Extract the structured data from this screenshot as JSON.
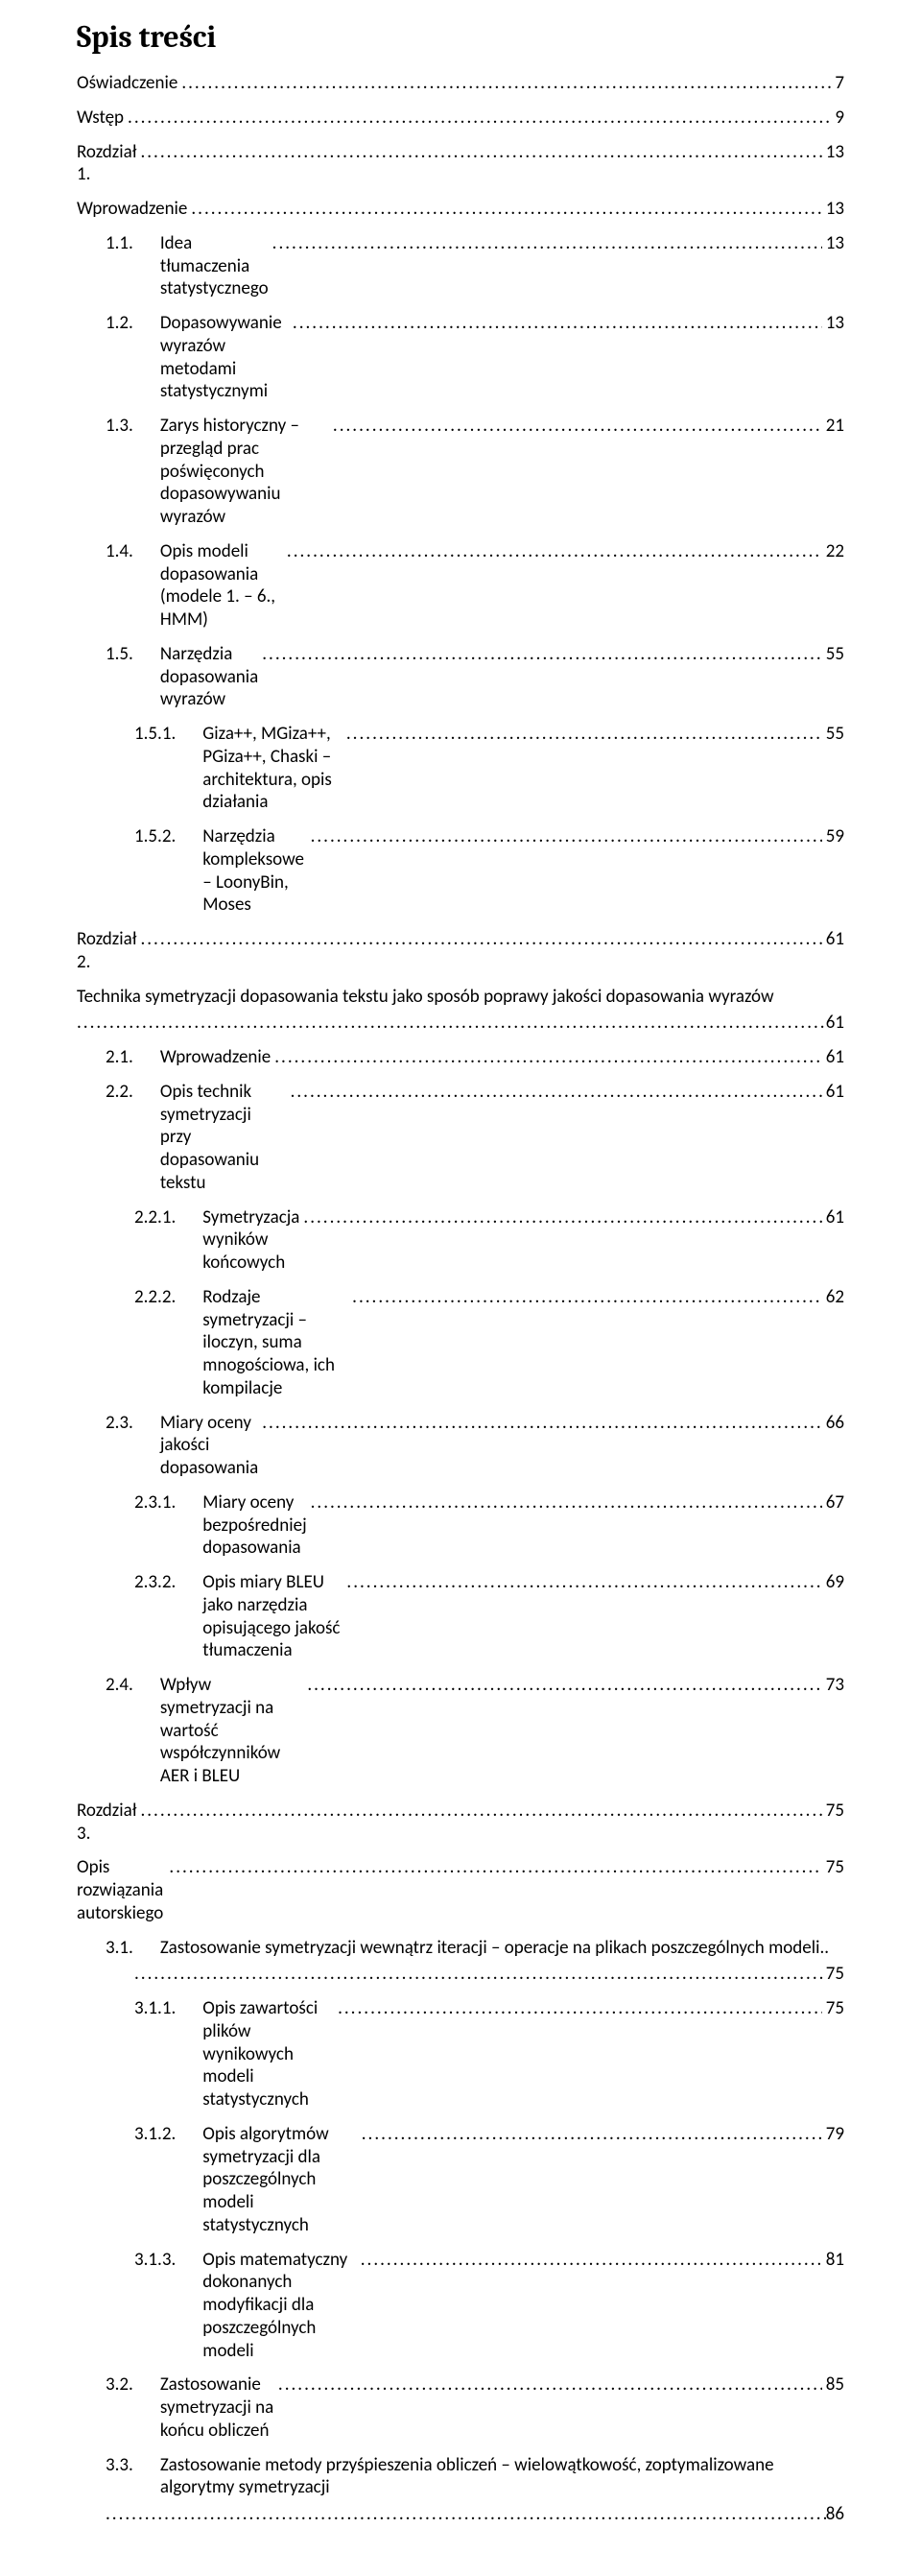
{
  "title": "Spis treści",
  "colors": {
    "text": "#000000",
    "background": "#ffffff"
  },
  "typography": {
    "title_fontsize": 32,
    "title_family": "Cambria",
    "body_fontsize": 19,
    "body_family": "Calibri"
  },
  "entries": [
    {
      "indent": 0,
      "num": "",
      "label": "Oświadczenie",
      "page": "7"
    },
    {
      "indent": 0,
      "num": "",
      "label": "Wstęp",
      "page": "9"
    },
    {
      "indent": 0,
      "num": "",
      "label": "Rozdział 1.",
      "page": "13"
    },
    {
      "indent": 0,
      "num": "",
      "label": "Wprowadzenie",
      "page": "13"
    },
    {
      "indent": 1,
      "num": "1.1.",
      "label": "Idea tłumaczenia statystycznego",
      "page": "13"
    },
    {
      "indent": 1,
      "num": "1.2.",
      "label": "Dopasowywanie wyrazów metodami statystycznymi",
      "page": "13"
    },
    {
      "indent": 1,
      "num": "1.3.",
      "label": "Zarys historyczny – przegląd prac poświęconych dopasowywaniu wyrazów",
      "page": "21"
    },
    {
      "indent": 1,
      "num": "1.4.",
      "label": "Opis modeli dopasowania (modele 1. – 6., HMM)",
      "page": "22"
    },
    {
      "indent": 1,
      "num": "1.5.",
      "label": "Narzędzia dopasowania wyrazów",
      "page": "55"
    },
    {
      "indent": 2,
      "num": "1.5.1.",
      "label": "Giza++, MGiza++, PGiza++, Chaski – architektura, opis działania",
      "page": "55"
    },
    {
      "indent": 2,
      "num": "1.5.2.",
      "label": "Narzędzia kompleksowe – LoonyBin, Moses",
      "page": "59"
    },
    {
      "indent": 0,
      "num": "",
      "label": "Rozdział 2.",
      "page": "61"
    },
    {
      "indent": 0,
      "num": "",
      "label": "Technika symetryzacji dopasowania tekstu jako sposób poprawy jakości dopasowania wyrazów",
      "page": "61",
      "wrap": true
    },
    {
      "indent": 1,
      "num": "2.1.",
      "label": "Wprowadzenie",
      "page": "61"
    },
    {
      "indent": 1,
      "num": "2.2.",
      "label": "Opis technik symetryzacji przy dopasowaniu tekstu",
      "page": "61"
    },
    {
      "indent": 2,
      "num": "2.2.1.",
      "label": "Symetryzacja wyników końcowych",
      "page": "61"
    },
    {
      "indent": 2,
      "num": "2.2.2.",
      "label": "Rodzaje symetryzacji – iloczyn, suma mnogościowa, ich kompilacje",
      "page": "62"
    },
    {
      "indent": 1,
      "num": "2.3.",
      "label": "Miary oceny jakości dopasowania",
      "page": "66"
    },
    {
      "indent": 2,
      "num": "2.3.1.",
      "label": "Miary oceny bezpośredniej dopasowania",
      "page": "67"
    },
    {
      "indent": 2,
      "num": "2.3.2.",
      "label": "Opis miary BLEU jako narzędzia opisującego jakość tłumaczenia",
      "page": "69"
    },
    {
      "indent": 1,
      "num": "2.4.",
      "label": "Wpływ symetryzacji na wartość współczynników AER i BLEU",
      "page": "73"
    },
    {
      "indent": 0,
      "num": "",
      "label": "Rozdział 3.",
      "page": "75"
    },
    {
      "indent": 0,
      "num": "",
      "label": "Opis rozwiązania autorskiego",
      "page": "75"
    },
    {
      "indent": 1,
      "num": "3.1.",
      "label": "Zastosowanie symetryzacji wewnątrz iteracji – operacje na plikach poszczególnych modeli..",
      "page": "75",
      "wrap": true,
      "cont_indent": 60
    },
    {
      "indent": 2,
      "num": "3.1.1.",
      "label": "Opis zawartości plików wynikowych modeli statystycznych",
      "page": "75"
    },
    {
      "indent": 2,
      "num": "3.1.2.",
      "label": "Opis algorytmów symetryzacji dla poszczególnych modeli statystycznych",
      "page": "79"
    },
    {
      "indent": 2,
      "num": "3.1.3.",
      "label": "Opis matematyczny dokonanych modyfikacji dla poszczególnych modeli",
      "page": "81"
    },
    {
      "indent": 1,
      "num": "3.2.",
      "label": "Zastosowanie symetryzacji na końcu obliczeń",
      "page": "85"
    },
    {
      "indent": 1,
      "num": "3.3.",
      "label": "Zastosowanie metody przyśpieszenia obliczeń – wielowątkowość, zoptymalizowane algorytmy symetryzacji",
      "page": "86",
      "wrap": true,
      "cont_indent": 30
    }
  ]
}
